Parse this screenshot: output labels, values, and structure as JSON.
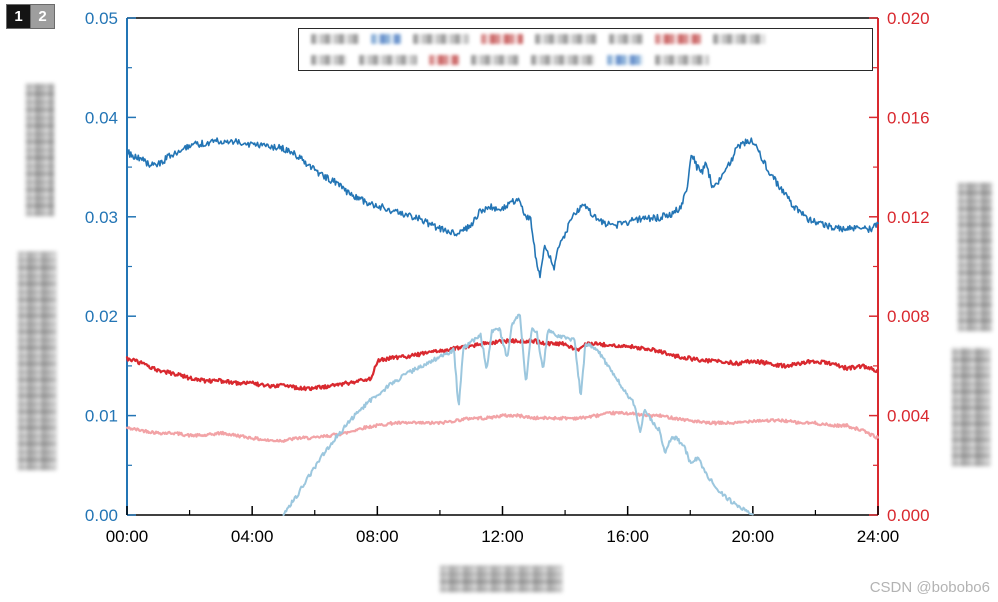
{
  "page": {
    "tabs": [
      {
        "label": "1"
      },
      {
        "label": "2"
      }
    ],
    "watermark": "CSDN @bobobo6"
  },
  "chart_data": {
    "type": "line",
    "title": "",
    "grid": false,
    "legend": {
      "visible": true,
      "position": "top",
      "contents_blurred": true
    },
    "axes": {
      "x": {
        "range": [
          0,
          24
        ],
        "tick_values": [
          0,
          4,
          8,
          12,
          16,
          20,
          24
        ],
        "tick_labels": [
          "00:00",
          "04:00",
          "08:00",
          "12:00",
          "16:00",
          "20:00",
          "24:00"
        ],
        "minor_step": 2,
        "color": "#000000",
        "label_blurred": true
      },
      "y_left": {
        "range": [
          0,
          0.05
        ],
        "tick_values": [
          0,
          0.01,
          0.02,
          0.03,
          0.04,
          0.05
        ],
        "tick_labels": [
          "0.00",
          "0.01",
          "0.02",
          "0.03",
          "0.04",
          "0.05"
        ],
        "minor_step": 0.005,
        "color": "#2375b5",
        "label_blurred": true
      },
      "y_right": {
        "range": [
          0,
          0.02
        ],
        "tick_values": [
          0,
          0.004,
          0.008,
          0.012,
          0.016,
          0.02
        ],
        "tick_labels": [
          "0.000",
          "0.004",
          "0.008",
          "0.012",
          "0.016",
          "0.020"
        ],
        "minor_step": 0.002,
        "color": "#d9292f",
        "label_blurred": true
      }
    },
    "series": [
      {
        "name": "pink-line-right-axis",
        "axis": "right",
        "color": "#f2a3a6",
        "line_width": 2.2,
        "noise_amplitude": 6e-05,
        "points": [
          [
            0,
            0.0035
          ],
          [
            0.5,
            0.0034
          ],
          [
            1,
            0.0033
          ],
          [
            1.5,
            0.0033
          ],
          [
            2,
            0.0032
          ],
          [
            2.5,
            0.0032
          ],
          [
            3,
            0.0033
          ],
          [
            3.5,
            0.0032
          ],
          [
            4,
            0.0031
          ],
          [
            4.5,
            0.003
          ],
          [
            5,
            0.003
          ],
          [
            5.5,
            0.0031
          ],
          [
            6,
            0.0031
          ],
          [
            6.5,
            0.0032
          ],
          [
            7,
            0.0033
          ],
          [
            7.5,
            0.0035
          ],
          [
            8,
            0.0036
          ],
          [
            8.5,
            0.0037
          ],
          [
            9,
            0.0037
          ],
          [
            9.5,
            0.0037
          ],
          [
            10,
            0.0037
          ],
          [
            10.5,
            0.0038
          ],
          [
            11,
            0.0039
          ],
          [
            11.5,
            0.0039
          ],
          [
            12,
            0.004
          ],
          [
            12.5,
            0.004
          ],
          [
            13,
            0.0039
          ],
          [
            13.5,
            0.0039
          ],
          [
            14,
            0.0039
          ],
          [
            14.5,
            0.0039
          ],
          [
            15,
            0.004
          ],
          [
            15.5,
            0.0041
          ],
          [
            16,
            0.0041
          ],
          [
            16.5,
            0.004
          ],
          [
            17,
            0.004
          ],
          [
            17.5,
            0.0039
          ],
          [
            18,
            0.0038
          ],
          [
            18.5,
            0.0037
          ],
          [
            19,
            0.0037
          ],
          [
            19.5,
            0.0037
          ],
          [
            20,
            0.0038
          ],
          [
            20.5,
            0.0038
          ],
          [
            21,
            0.0038
          ],
          [
            21.5,
            0.0037
          ],
          [
            22,
            0.0037
          ],
          [
            22.5,
            0.0036
          ],
          [
            23,
            0.0036
          ],
          [
            23.5,
            0.0034
          ],
          [
            24,
            0.0031
          ]
        ]
      },
      {
        "name": "red-line-right-axis",
        "axis": "right",
        "color": "#d9292f",
        "line_width": 2.2,
        "noise_amplitude": 8e-05,
        "points": [
          [
            0,
            0.0063
          ],
          [
            0.5,
            0.0061
          ],
          [
            1,
            0.0058
          ],
          [
            1.5,
            0.0057
          ],
          [
            2,
            0.0055
          ],
          [
            2.5,
            0.0054
          ],
          [
            3,
            0.0054
          ],
          [
            3.5,
            0.0053
          ],
          [
            4,
            0.0053
          ],
          [
            4.5,
            0.0052
          ],
          [
            5,
            0.0052
          ],
          [
            5.5,
            0.0051
          ],
          [
            6,
            0.0051
          ],
          [
            6.5,
            0.0052
          ],
          [
            7,
            0.0053
          ],
          [
            7.5,
            0.0054
          ],
          [
            7.8,
            0.0055
          ],
          [
            8,
            0.0062
          ],
          [
            8.4,
            0.0063
          ],
          [
            9,
            0.0064
          ],
          [
            9.5,
            0.0065
          ],
          [
            10,
            0.0066
          ],
          [
            10.5,
            0.0067
          ],
          [
            11,
            0.0068
          ],
          [
            11.5,
            0.0069
          ],
          [
            12,
            0.007
          ],
          [
            12.5,
            0.007
          ],
          [
            13,
            0.007
          ],
          [
            13.5,
            0.0069
          ],
          [
            14,
            0.0069
          ],
          [
            14.4,
            0.0066
          ],
          [
            14.7,
            0.0069
          ],
          [
            15,
            0.0069
          ],
          [
            15.5,
            0.0068
          ],
          [
            16,
            0.0068
          ],
          [
            16.5,
            0.0067
          ],
          [
            17,
            0.0066
          ],
          [
            17.5,
            0.0064
          ],
          [
            18,
            0.0063
          ],
          [
            18.5,
            0.0062
          ],
          [
            19,
            0.0062
          ],
          [
            19.5,
            0.0061
          ],
          [
            20,
            0.0062
          ],
          [
            20.5,
            0.0061
          ],
          [
            21,
            0.006
          ],
          [
            21.5,
            0.0061
          ],
          [
            22,
            0.0062
          ],
          [
            22.5,
            0.0061
          ],
          [
            23,
            0.0059
          ],
          [
            23.5,
            0.006
          ],
          [
            24,
            0.0058
          ]
        ]
      },
      {
        "name": "light-blue-line-left-axis",
        "axis": "left",
        "color": "#9cc7de",
        "line_width": 2.0,
        "noise_amplitude": 0.00022,
        "points": [
          [
            5,
            0.0002
          ],
          [
            5.4,
            0.0018
          ],
          [
            5.8,
            0.0038
          ],
          [
            6.2,
            0.0058
          ],
          [
            6.6,
            0.0075
          ],
          [
            7,
            0.009
          ],
          [
            7.4,
            0.0104
          ],
          [
            7.8,
            0.0116
          ],
          [
            8.2,
            0.0126
          ],
          [
            8.6,
            0.0135
          ],
          [
            9,
            0.0143
          ],
          [
            9.4,
            0.015
          ],
          [
            9.8,
            0.0156
          ],
          [
            10.2,
            0.0162
          ],
          [
            10.45,
            0.0166
          ],
          [
            10.6,
            0.0106
          ],
          [
            10.75,
            0.0168
          ],
          [
            11,
            0.0174
          ],
          [
            11.3,
            0.0181
          ],
          [
            11.5,
            0.0146
          ],
          [
            11.65,
            0.0184
          ],
          [
            11.9,
            0.0188
          ],
          [
            12.15,
            0.0157
          ],
          [
            12.3,
            0.0191
          ],
          [
            12.55,
            0.0202
          ],
          [
            12.75,
            0.0133
          ],
          [
            12.95,
            0.019
          ],
          [
            13.1,
            0.0183
          ],
          [
            13.3,
            0.0146
          ],
          [
            13.45,
            0.0186
          ],
          [
            13.7,
            0.0181
          ],
          [
            14,
            0.0178
          ],
          [
            14.3,
            0.0176
          ],
          [
            14.5,
            0.0119
          ],
          [
            14.65,
            0.0173
          ],
          [
            15,
            0.0168
          ],
          [
            15.3,
            0.0153
          ],
          [
            15.6,
            0.0139
          ],
          [
            15.9,
            0.0126
          ],
          [
            16.2,
            0.0112
          ],
          [
            16.4,
            0.0083
          ],
          [
            16.55,
            0.0106
          ],
          [
            16.8,
            0.0093
          ],
          [
            17,
            0.0086
          ],
          [
            17.2,
            0.0063
          ],
          [
            17.4,
            0.0079
          ],
          [
            17.6,
            0.0076
          ],
          [
            17.8,
            0.0069
          ],
          [
            18,
            0.0053
          ],
          [
            18.25,
            0.0058
          ],
          [
            18.5,
            0.0041
          ],
          [
            18.8,
            0.0029
          ],
          [
            19.1,
            0.0019
          ],
          [
            19.5,
            0.0009
          ],
          [
            20,
            0.0001
          ]
        ]
      },
      {
        "name": "dark-blue-line-left-axis",
        "axis": "left",
        "color": "#2375b5",
        "line_width": 1.6,
        "noise_amplitude": 0.00035,
        "points": [
          [
            0,
            0.0365
          ],
          [
            0.4,
            0.0358
          ],
          [
            0.8,
            0.0352
          ],
          [
            1.1,
            0.0355
          ],
          [
            1.4,
            0.0362
          ],
          [
            1.8,
            0.0368
          ],
          [
            2.2,
            0.0373
          ],
          [
            2.6,
            0.0375
          ],
          [
            3,
            0.0377
          ],
          [
            3.4,
            0.0376
          ],
          [
            3.8,
            0.0374
          ],
          [
            4.2,
            0.0372
          ],
          [
            4.6,
            0.0371
          ],
          [
            5,
            0.0368
          ],
          [
            5.4,
            0.0362
          ],
          [
            5.8,
            0.0352
          ],
          [
            6.2,
            0.0342
          ],
          [
            6.6,
            0.0336
          ],
          [
            7,
            0.0326
          ],
          [
            7.4,
            0.0318
          ],
          [
            7.8,
            0.0313
          ],
          [
            8.2,
            0.0309
          ],
          [
            8.6,
            0.0305
          ],
          [
            9,
            0.0302
          ],
          [
            9.4,
            0.0297
          ],
          [
            9.8,
            0.0291
          ],
          [
            10.2,
            0.0286
          ],
          [
            10.6,
            0.0284
          ],
          [
            11,
            0.0291
          ],
          [
            11.3,
            0.0306
          ],
          [
            11.6,
            0.0311
          ],
          [
            11.9,
            0.0307
          ],
          [
            12.2,
            0.0313
          ],
          [
            12.5,
            0.0317
          ],
          [
            12.7,
            0.0303
          ],
          [
            12.9,
            0.0296
          ],
          [
            13.05,
            0.0263
          ],
          [
            13.2,
            0.0239
          ],
          [
            13.35,
            0.027
          ],
          [
            13.5,
            0.0261
          ],
          [
            13.65,
            0.0247
          ],
          [
            13.8,
            0.0271
          ],
          [
            14,
            0.0283
          ],
          [
            14.3,
            0.0303
          ],
          [
            14.6,
            0.0311
          ],
          [
            14.9,
            0.0301
          ],
          [
            15.2,
            0.0294
          ],
          [
            15.6,
            0.0291
          ],
          [
            16,
            0.0295
          ],
          [
            16.5,
            0.0298
          ],
          [
            17,
            0.0299
          ],
          [
            17.4,
            0.0303
          ],
          [
            17.7,
            0.0309
          ],
          [
            17.9,
            0.0331
          ],
          [
            18.05,
            0.0363
          ],
          [
            18.2,
            0.0351
          ],
          [
            18.35,
            0.0344
          ],
          [
            18.5,
            0.0354
          ],
          [
            18.7,
            0.0331
          ],
          [
            18.9,
            0.0336
          ],
          [
            19.1,
            0.0345
          ],
          [
            19.3,
            0.0355
          ],
          [
            19.5,
            0.0371
          ],
          [
            19.7,
            0.0374
          ],
          [
            19.9,
            0.0377
          ],
          [
            20.1,
            0.0372
          ],
          [
            20.4,
            0.0352
          ],
          [
            20.7,
            0.0337
          ],
          [
            21,
            0.0324
          ],
          [
            21.4,
            0.0307
          ],
          [
            21.8,
            0.0297
          ],
          [
            22.2,
            0.0293
          ],
          [
            22.6,
            0.0289
          ],
          [
            23,
            0.0287
          ],
          [
            23.4,
            0.0291
          ],
          [
            23.7,
            0.0287
          ],
          [
            24,
            0.0292
          ]
        ]
      }
    ]
  }
}
